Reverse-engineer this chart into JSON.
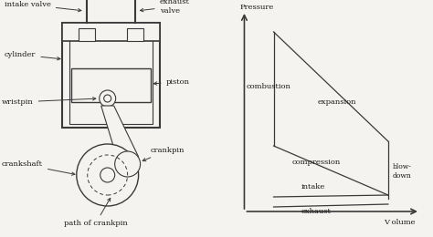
{
  "bg_color": "#f5f3ef",
  "line_color": "#3a3a3a",
  "text_color": "#1a1a1a",
  "font_size": 6.0,
  "pv_labels": {
    "pressure": "Pressure",
    "volume": "V olume",
    "combustion": "combustion",
    "expansion": "expansion",
    "compression": "compression",
    "intake": "intake",
    "exhaust": "exhaust",
    "blowdown": "blow-\ndown"
  },
  "engine_labels": {
    "intake_valve": "intake valve",
    "exhaust_valve": "exhaust\nvalve",
    "cylinder": "cylinder",
    "piston": "piston",
    "wristpin": "wristpin",
    "crankshaft": "crankshaft",
    "crankpin": "crankpin",
    "path_of_crankpin": "path of crankpin"
  }
}
